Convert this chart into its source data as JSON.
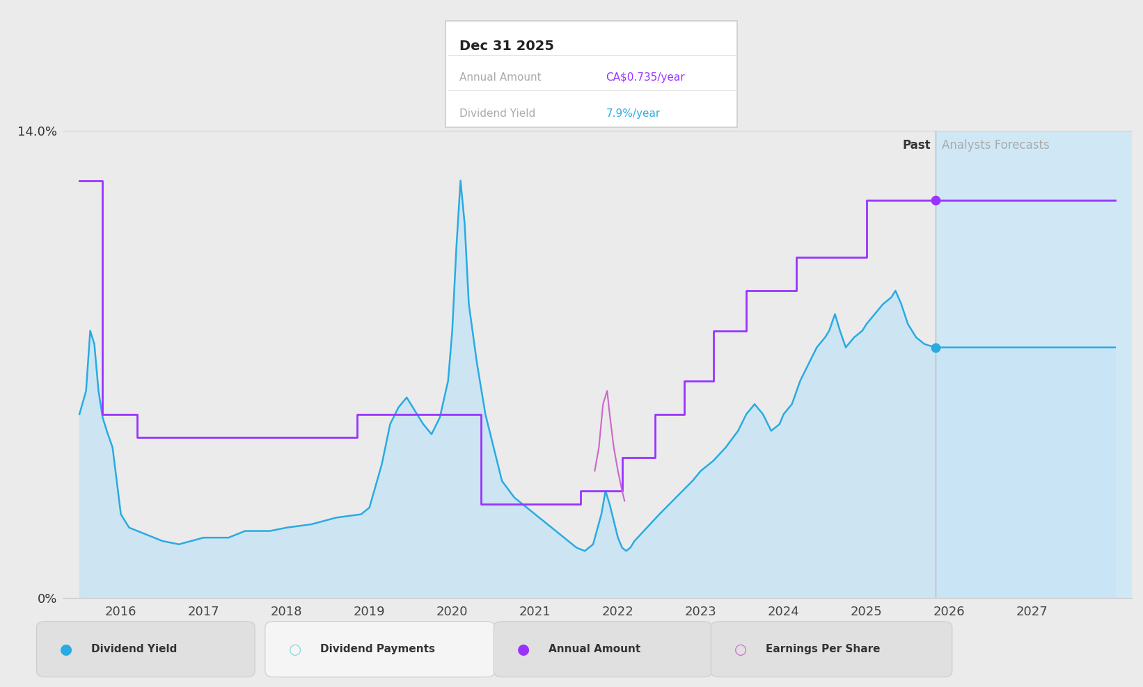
{
  "bg_color": "#ebebeb",
  "plot_bg_color": "#ebebeb",
  "forecast_bg_color": "#d0e8f5",
  "xmin": 2015.3,
  "xmax": 2028.2,
  "ymin": 0.0,
  "ymax": 14.0,
  "xticks": [
    2016,
    2017,
    2018,
    2019,
    2020,
    2021,
    2022,
    2023,
    2024,
    2025,
    2026,
    2027
  ],
  "forecast_start_x": 2025.83,
  "tooltip_date": "Dec 31 2025",
  "tooltip_annual": "CA$0.735/year",
  "tooltip_yield": "7.9%/year",
  "annual_amount_color": "#9933FF",
  "dividend_yield_color": "#29ABE2",
  "earnings_per_share_color": "#CC66CC",
  "fill_color": "#c8e4f5",
  "dividend_yield_dot_x": 2025.83,
  "dividend_yield_dot_y": 7.5,
  "annual_amount_dot_x": 2025.83,
  "annual_amount_dot_y": 11.9,
  "legend_items": [
    {
      "label": "Dividend Yield",
      "color": "#29ABE2",
      "filled": true,
      "bg": "#e0e0e0"
    },
    {
      "label": "Dividend Payments",
      "color": "#7FD9D8",
      "filled": false,
      "bg": "#f5f5f5"
    },
    {
      "label": "Annual Amount",
      "color": "#9933FF",
      "filled": true,
      "bg": "#e0e0e0"
    },
    {
      "label": "Earnings Per Share",
      "color": "#CC66CC",
      "filled": false,
      "bg": "#e0e0e0"
    }
  ],
  "dividend_yield_points": [
    [
      2015.5,
      5.5
    ],
    [
      2015.58,
      6.2
    ],
    [
      2015.63,
      8.0
    ],
    [
      2015.68,
      7.6
    ],
    [
      2015.73,
      6.2
    ],
    [
      2015.78,
      5.4
    ],
    [
      2015.83,
      5.0
    ],
    [
      2015.9,
      4.5
    ],
    [
      2015.95,
      3.5
    ],
    [
      2016.0,
      2.5
    ],
    [
      2016.1,
      2.1
    ],
    [
      2016.3,
      1.9
    ],
    [
      2016.5,
      1.7
    ],
    [
      2016.7,
      1.6
    ],
    [
      2017.0,
      1.8
    ],
    [
      2017.3,
      1.8
    ],
    [
      2017.5,
      2.0
    ],
    [
      2017.8,
      2.0
    ],
    [
      2018.0,
      2.1
    ],
    [
      2018.3,
      2.2
    ],
    [
      2018.6,
      2.4
    ],
    [
      2018.9,
      2.5
    ],
    [
      2019.0,
      2.7
    ],
    [
      2019.15,
      4.0
    ],
    [
      2019.25,
      5.2
    ],
    [
      2019.35,
      5.7
    ],
    [
      2019.45,
      6.0
    ],
    [
      2019.55,
      5.6
    ],
    [
      2019.65,
      5.2
    ],
    [
      2019.75,
      4.9
    ],
    [
      2019.85,
      5.4
    ],
    [
      2019.95,
      6.5
    ],
    [
      2020.0,
      8.0
    ],
    [
      2020.05,
      10.5
    ],
    [
      2020.1,
      12.5
    ],
    [
      2020.15,
      11.2
    ],
    [
      2020.2,
      8.8
    ],
    [
      2020.3,
      7.0
    ],
    [
      2020.4,
      5.5
    ],
    [
      2020.5,
      4.5
    ],
    [
      2020.6,
      3.5
    ],
    [
      2020.75,
      3.0
    ],
    [
      2020.9,
      2.7
    ],
    [
      2021.0,
      2.5
    ],
    [
      2021.1,
      2.3
    ],
    [
      2021.2,
      2.1
    ],
    [
      2021.35,
      1.8
    ],
    [
      2021.5,
      1.5
    ],
    [
      2021.6,
      1.4
    ],
    [
      2021.65,
      1.5
    ],
    [
      2021.7,
      1.6
    ],
    [
      2021.8,
      2.5
    ],
    [
      2021.85,
      3.2
    ],
    [
      2021.9,
      2.8
    ],
    [
      2021.95,
      2.3
    ],
    [
      2022.0,
      1.8
    ],
    [
      2022.05,
      1.5
    ],
    [
      2022.1,
      1.4
    ],
    [
      2022.15,
      1.5
    ],
    [
      2022.2,
      1.7
    ],
    [
      2022.35,
      2.1
    ],
    [
      2022.5,
      2.5
    ],
    [
      2022.7,
      3.0
    ],
    [
      2022.9,
      3.5
    ],
    [
      2023.0,
      3.8
    ],
    [
      2023.15,
      4.1
    ],
    [
      2023.3,
      4.5
    ],
    [
      2023.45,
      5.0
    ],
    [
      2023.55,
      5.5
    ],
    [
      2023.65,
      5.8
    ],
    [
      2023.75,
      5.5
    ],
    [
      2023.85,
      5.0
    ],
    [
      2023.95,
      5.2
    ],
    [
      2024.0,
      5.5
    ],
    [
      2024.1,
      5.8
    ],
    [
      2024.2,
      6.5
    ],
    [
      2024.3,
      7.0
    ],
    [
      2024.4,
      7.5
    ],
    [
      2024.5,
      7.8
    ],
    [
      2024.55,
      8.0
    ],
    [
      2024.62,
      8.5
    ],
    [
      2024.68,
      8.0
    ],
    [
      2024.75,
      7.5
    ],
    [
      2024.85,
      7.8
    ],
    [
      2024.95,
      8.0
    ],
    [
      2025.0,
      8.2
    ],
    [
      2025.1,
      8.5
    ],
    [
      2025.2,
      8.8
    ],
    [
      2025.3,
      9.0
    ],
    [
      2025.35,
      9.2
    ],
    [
      2025.42,
      8.8
    ],
    [
      2025.5,
      8.2
    ],
    [
      2025.6,
      7.8
    ],
    [
      2025.7,
      7.6
    ],
    [
      2025.83,
      7.5
    ],
    [
      2026.0,
      7.5
    ],
    [
      2026.5,
      7.5
    ],
    [
      2027.0,
      7.5
    ],
    [
      2027.5,
      7.5
    ],
    [
      2028.0,
      7.5
    ]
  ],
  "annual_amount_points": [
    [
      2015.5,
      12.5
    ],
    [
      2015.78,
      12.5
    ],
    [
      2015.78,
      5.5
    ],
    [
      2016.2,
      5.5
    ],
    [
      2016.2,
      4.8
    ],
    [
      2018.85,
      4.8
    ],
    [
      2018.85,
      5.5
    ],
    [
      2020.35,
      5.5
    ],
    [
      2020.35,
      2.8
    ],
    [
      2021.55,
      2.8
    ],
    [
      2021.55,
      3.2
    ],
    [
      2022.05,
      3.2
    ],
    [
      2022.05,
      4.2
    ],
    [
      2022.45,
      4.2
    ],
    [
      2022.45,
      5.5
    ],
    [
      2022.8,
      5.5
    ],
    [
      2022.8,
      6.5
    ],
    [
      2023.15,
      6.5
    ],
    [
      2023.15,
      8.0
    ],
    [
      2023.55,
      8.0
    ],
    [
      2023.55,
      9.2
    ],
    [
      2024.15,
      9.2
    ],
    [
      2024.15,
      10.2
    ],
    [
      2025.0,
      10.2
    ],
    [
      2025.0,
      11.9
    ],
    [
      2025.83,
      11.9
    ],
    [
      2028.0,
      11.9
    ]
  ],
  "earnings_per_share_points": [
    [
      2021.72,
      3.8
    ],
    [
      2021.77,
      4.5
    ],
    [
      2021.82,
      5.8
    ],
    [
      2021.87,
      6.2
    ],
    [
      2021.9,
      5.5
    ],
    [
      2021.95,
      4.5
    ],
    [
      2022.0,
      3.8
    ],
    [
      2022.05,
      3.2
    ],
    [
      2022.08,
      2.9
    ]
  ]
}
